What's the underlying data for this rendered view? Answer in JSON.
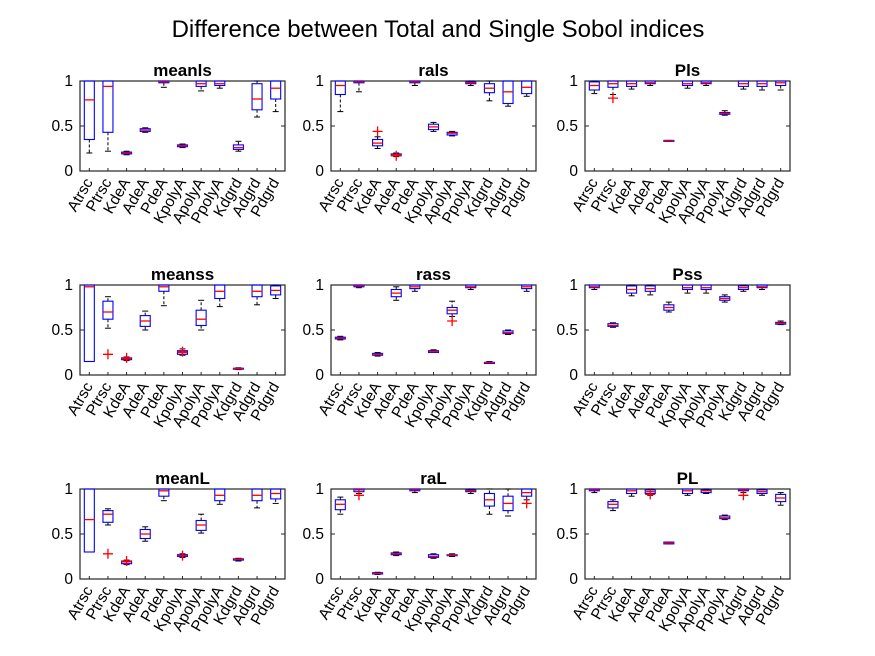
{
  "figure_title": "Difference between Total and Single Sobol indices",
  "colors": {
    "box": "#0000ff",
    "median": "#ff0000",
    "whisker": "#000000",
    "outlier": "#ff0000",
    "axis": "#262626"
  },
  "chart_data": [
    {
      "type": "box",
      "title": "meanls",
      "ylim": [
        0,
        1
      ],
      "yticks": [
        "0",
        "0.5",
        "1"
      ],
      "categories": [
        "Atrsc",
        "Ptrsc",
        "KdeA",
        "AdeA",
        "PdeA",
        "KpolyA",
        "ApolyA",
        "PpolyA",
        "Kdgrd",
        "Adgrd",
        "Pdgrd"
      ],
      "boxes": [
        {
          "lw": 0.2,
          "q1": 0.35,
          "med": 0.79,
          "q3": 1.0,
          "uw": 1.0
        },
        {
          "lw": 0.22,
          "q1": 0.43,
          "med": 0.94,
          "q3": 1.0,
          "uw": 1.0
        },
        {
          "lw": 0.18,
          "q1": 0.19,
          "med": 0.2,
          "q3": 0.21,
          "uw": 0.22
        },
        {
          "lw": 0.43,
          "q1": 0.44,
          "med": 0.455,
          "q3": 0.47,
          "uw": 0.48
        },
        {
          "lw": 0.93,
          "q1": 0.98,
          "med": 0.99,
          "q3": 1.0,
          "uw": 1.0
        },
        {
          "lw": 0.26,
          "q1": 0.27,
          "med": 0.28,
          "q3": 0.29,
          "uw": 0.3
        },
        {
          "lw": 0.89,
          "q1": 0.94,
          "med": 0.97,
          "q3": 1.0,
          "uw": 1.0
        },
        {
          "lw": 0.92,
          "q1": 0.95,
          "med": 0.97,
          "q3": 1.0,
          "uw": 1.0
        },
        {
          "lw": 0.22,
          "q1": 0.24,
          "med": 0.26,
          "q3": 0.29,
          "uw": 0.33
        },
        {
          "lw": 0.6,
          "q1": 0.68,
          "med": 0.8,
          "q3": 0.97,
          "uw": 1.0
        },
        {
          "lw": 0.66,
          "q1": 0.8,
          "med": 0.92,
          "q3": 1.0,
          "uw": 1.0
        }
      ]
    },
    {
      "type": "box",
      "title": "rals",
      "ylim": [
        0,
        1
      ],
      "yticks": [
        "0",
        "0.5",
        "1"
      ],
      "categories": [
        "Atrsc",
        "Ptrsc",
        "KdeA",
        "AdeA",
        "PdeA",
        "KpolyA",
        "ApolyA",
        "PpolyA",
        "Kdgrd",
        "Adgrd",
        "Pdgrd"
      ],
      "boxes": [
        {
          "lw": 0.66,
          "q1": 0.85,
          "med": 0.95,
          "q3": 1.0,
          "uw": 1.0
        },
        {
          "lw": 0.88,
          "q1": 0.98,
          "med": 0.99,
          "q3": 1.0,
          "uw": 1.0
        },
        {
          "lw": 0.25,
          "q1": 0.28,
          "med": 0.31,
          "q3": 0.35,
          "uw": 0.38,
          "outliers": [
            0.44
          ]
        },
        {
          "lw": 0.16,
          "q1": 0.17,
          "med": 0.18,
          "q3": 0.19,
          "uw": 0.2,
          "outliers": [
            0.17
          ]
        },
        {
          "lw": 0.95,
          "q1": 0.98,
          "med": 0.99,
          "q3": 1.0,
          "uw": 1.0
        },
        {
          "lw": 0.44,
          "q1": 0.46,
          "med": 0.49,
          "q3": 0.52,
          "uw": 0.54
        },
        {
          "lw": 0.39,
          "q1": 0.4,
          "med": 0.42,
          "q3": 0.43,
          "uw": 0.44
        },
        {
          "lw": 0.95,
          "q1": 0.97,
          "med": 0.98,
          "q3": 0.99,
          "uw": 1.0
        },
        {
          "lw": 0.78,
          "q1": 0.87,
          "med": 0.92,
          "q3": 0.97,
          "uw": 1.0
        },
        {
          "lw": 0.72,
          "q1": 0.75,
          "med": 0.88,
          "q3": 1.0,
          "uw": 1.0
        },
        {
          "lw": 0.83,
          "q1": 0.86,
          "med": 0.93,
          "q3": 1.0,
          "uw": 1.0
        }
      ]
    },
    {
      "type": "box",
      "title": "Pls",
      "ylim": [
        0,
        1
      ],
      "yticks": [
        "0",
        "0.5",
        "1"
      ],
      "categories": [
        "Atrsc",
        "Ptrsc",
        "KdeA",
        "AdeA",
        "PdeA",
        "KpolyA",
        "ApolyA",
        "PpolyA",
        "Kdgrd",
        "Adgrd",
        "Pdgrd"
      ],
      "boxes": [
        {
          "lw": 0.86,
          "q1": 0.9,
          "med": 0.95,
          "q3": 0.99,
          "uw": 1.0
        },
        {
          "lw": 0.85,
          "q1": 0.93,
          "med": 0.97,
          "q3": 1.0,
          "uw": 1.0,
          "outliers": [
            0.81
          ]
        },
        {
          "lw": 0.91,
          "q1": 0.94,
          "med": 0.97,
          "q3": 1.0,
          "uw": 1.0
        },
        {
          "lw": 0.95,
          "q1": 0.97,
          "med": 0.98,
          "q3": 1.0,
          "uw": 1.0
        },
        {
          "lw": 0.33,
          "q1": 0.33,
          "med": 0.335,
          "q3": 0.34,
          "uw": 0.34
        },
        {
          "lw": 0.92,
          "q1": 0.95,
          "med": 0.97,
          "q3": 1.0,
          "uw": 1.0
        },
        {
          "lw": 0.95,
          "q1": 0.97,
          "med": 0.98,
          "q3": 1.0,
          "uw": 1.0
        },
        {
          "lw": 0.62,
          "q1": 0.63,
          "med": 0.64,
          "q3": 0.65,
          "uw": 0.67
        },
        {
          "lw": 0.91,
          "q1": 0.94,
          "med": 0.97,
          "q3": 1.0,
          "uw": 1.0
        },
        {
          "lw": 0.9,
          "q1": 0.94,
          "med": 0.97,
          "q3": 1.0,
          "uw": 1.0
        },
        {
          "lw": 0.9,
          "q1": 0.95,
          "med": 0.98,
          "q3": 1.0,
          "uw": 1.0
        }
      ]
    },
    {
      "type": "box",
      "title": "meanss",
      "ylim": [
        0,
        1
      ],
      "yticks": [
        "0",
        "0.5",
        "1"
      ],
      "categories": [
        "Atrsc",
        "Ptrsc",
        "KdeA",
        "AdeA",
        "PdeA",
        "KpolyA",
        "ApolyA",
        "PpolyA",
        "Kdgrd",
        "Adgrd",
        "Pdgrd"
      ],
      "boxes": [
        {
          "lw": 0.15,
          "q1": 0.15,
          "med": 0.98,
          "q3": 1.0,
          "uw": 1.0
        },
        {
          "lw": 0.52,
          "q1": 0.62,
          "med": 0.7,
          "q3": 0.82,
          "uw": 0.87,
          "outliers": [
            0.23
          ]
        },
        {
          "lw": 0.16,
          "q1": 0.17,
          "med": 0.18,
          "q3": 0.19,
          "uw": 0.2,
          "outliers": [
            0.19
          ]
        },
        {
          "lw": 0.5,
          "q1": 0.54,
          "med": 0.6,
          "q3": 0.66,
          "uw": 0.71
        },
        {
          "lw": 0.77,
          "q1": 0.93,
          "med": 0.98,
          "q3": 1.0,
          "uw": 1.0
        },
        {
          "lw": 0.22,
          "q1": 0.23,
          "med": 0.25,
          "q3": 0.27,
          "uw": 0.29,
          "outliers": [
            0.26
          ]
        },
        {
          "lw": 0.5,
          "q1": 0.55,
          "med": 0.62,
          "q3": 0.72,
          "uw": 0.83
        },
        {
          "lw": 0.76,
          "q1": 0.85,
          "med": 0.93,
          "q3": 1.0,
          "uw": 1.0
        },
        {
          "lw": 0.06,
          "q1": 0.065,
          "med": 0.07,
          "q3": 0.075,
          "uw": 0.08
        },
        {
          "lw": 0.78,
          "q1": 0.87,
          "med": 0.93,
          "q3": 1.0,
          "uw": 1.0
        },
        {
          "lw": 0.85,
          "q1": 0.89,
          "med": 0.94,
          "q3": 0.99,
          "uw": 1.0
        }
      ]
    },
    {
      "type": "box",
      "title": "rass",
      "ylim": [
        0,
        1
      ],
      "yticks": [
        "0",
        "0.5",
        "1"
      ],
      "categories": [
        "Atrsc",
        "Ptrsc",
        "KdeA",
        "AdeA",
        "PdeA",
        "KpolyA",
        "ApolyA",
        "PpolyA",
        "Kdgrd",
        "Adgrd",
        "Pdgrd"
      ],
      "boxes": [
        {
          "lw": 0.39,
          "q1": 0.4,
          "med": 0.41,
          "q3": 0.42,
          "uw": 0.43
        },
        {
          "lw": 0.97,
          "q1": 0.98,
          "med": 0.99,
          "q3": 1.0,
          "uw": 1.0
        },
        {
          "lw": 0.21,
          "q1": 0.22,
          "med": 0.23,
          "q3": 0.24,
          "uw": 0.25
        },
        {
          "lw": 0.83,
          "q1": 0.87,
          "med": 0.91,
          "q3": 0.95,
          "uw": 0.98
        },
        {
          "lw": 0.93,
          "q1": 0.96,
          "med": 0.98,
          "q3": 1.0,
          "uw": 1.0
        },
        {
          "lw": 0.25,
          "q1": 0.25,
          "med": 0.26,
          "q3": 0.27,
          "uw": 0.28
        },
        {
          "lw": 0.65,
          "q1": 0.68,
          "med": 0.72,
          "q3": 0.75,
          "uw": 0.82,
          "outliers": [
            0.6
          ]
        },
        {
          "lw": 0.95,
          "q1": 0.97,
          "med": 0.98,
          "q3": 1.0,
          "uw": 1.0
        },
        {
          "lw": 0.13,
          "q1": 0.13,
          "med": 0.14,
          "q3": 0.14,
          "uw": 0.15
        },
        {
          "lw": 0.45,
          "q1": 0.46,
          "med": 0.47,
          "q3": 0.49,
          "uw": 0.5
        },
        {
          "lw": 0.93,
          "q1": 0.96,
          "med": 0.98,
          "q3": 1.0,
          "uw": 1.0
        }
      ]
    },
    {
      "type": "box",
      "title": "Pss",
      "ylim": [
        0,
        1
      ],
      "yticks": [
        "0",
        "0.5",
        "1"
      ],
      "categories": [
        "Atrsc",
        "Ptrsc",
        "KdeA",
        "AdeA",
        "PdeA",
        "KpolyA",
        "ApolyA",
        "PpolyA",
        "Kdgrd",
        "Adgrd",
        "Pdgrd"
      ],
      "boxes": [
        {
          "lw": 0.95,
          "q1": 0.97,
          "med": 0.98,
          "q3": 1.0,
          "uw": 1.0
        },
        {
          "lw": 0.53,
          "q1": 0.54,
          "med": 0.55,
          "q3": 0.57,
          "uw": 0.58
        },
        {
          "lw": 0.88,
          "q1": 0.91,
          "med": 0.95,
          "q3": 0.99,
          "uw": 1.0
        },
        {
          "lw": 0.89,
          "q1": 0.93,
          "med": 0.96,
          "q3": 0.99,
          "uw": 1.0
        },
        {
          "lw": 0.7,
          "q1": 0.72,
          "med": 0.75,
          "q3": 0.78,
          "uw": 0.81
        },
        {
          "lw": 0.91,
          "q1": 0.95,
          "med": 0.97,
          "q3": 1.0,
          "uw": 1.0
        },
        {
          "lw": 0.91,
          "q1": 0.95,
          "med": 0.97,
          "q3": 1.0,
          "uw": 1.0
        },
        {
          "lw": 0.81,
          "q1": 0.83,
          "med": 0.85,
          "q3": 0.87,
          "uw": 0.89
        },
        {
          "lw": 0.93,
          "q1": 0.95,
          "med": 0.97,
          "q3": 0.99,
          "uw": 1.0
        },
        {
          "lw": 0.95,
          "q1": 0.97,
          "med": 0.98,
          "q3": 1.0,
          "uw": 1.0
        },
        {
          "lw": 0.56,
          "q1": 0.565,
          "med": 0.575,
          "q3": 0.585,
          "uw": 0.6
        }
      ]
    },
    {
      "type": "box",
      "title": "meanL",
      "ylim": [
        0,
        1
      ],
      "yticks": [
        "0",
        "0.5",
        "1"
      ],
      "categories": [
        "Atrsc",
        "Ptrsc",
        "KdeA",
        "AdeA",
        "PdeA",
        "KpolyA",
        "ApolyA",
        "PpolyA",
        "Kdgrd",
        "Adgrd",
        "Pdgrd"
      ],
      "boxes": [
        {
          "lw": 0.3,
          "q1": 0.3,
          "med": 0.66,
          "q3": 1.0,
          "uw": 1.0
        },
        {
          "lw": 0.6,
          "q1": 0.63,
          "med": 0.72,
          "q3": 0.76,
          "uw": 0.78,
          "outliers": [
            0.28
          ]
        },
        {
          "lw": 0.16,
          "q1": 0.17,
          "med": 0.19,
          "q3": 0.2,
          "uw": 0.21,
          "outliers": [
            0.2
          ]
        },
        {
          "lw": 0.42,
          "q1": 0.45,
          "med": 0.5,
          "q3": 0.55,
          "uw": 0.58
        },
        {
          "lw": 0.87,
          "q1": 0.92,
          "med": 0.98,
          "q3": 1.0,
          "uw": 1.0
        },
        {
          "lw": 0.24,
          "q1": 0.25,
          "med": 0.26,
          "q3": 0.27,
          "uw": 0.28,
          "outliers": [
            0.26
          ]
        },
        {
          "lw": 0.51,
          "q1": 0.54,
          "med": 0.6,
          "q3": 0.65,
          "uw": 0.72
        },
        {
          "lw": 0.83,
          "q1": 0.87,
          "med": 0.93,
          "q3": 1.0,
          "uw": 1.0
        },
        {
          "lw": 0.2,
          "q1": 0.21,
          "med": 0.22,
          "q3": 0.225,
          "uw": 0.23
        },
        {
          "lw": 0.79,
          "q1": 0.87,
          "med": 0.93,
          "q3": 1.0,
          "uw": 1.0
        },
        {
          "lw": 0.84,
          "q1": 0.89,
          "med": 0.95,
          "q3": 1.0,
          "uw": 1.0
        }
      ]
    },
    {
      "type": "box",
      "title": "raL",
      "ylim": [
        0,
        1
      ],
      "yticks": [
        "0",
        "0.5",
        "1"
      ],
      "categories": [
        "Atrsc",
        "Ptrsc",
        "KdeA",
        "AdeA",
        "PdeA",
        "KpolyA",
        "ApolyA",
        "PpolyA",
        "Kdgrd",
        "Adgrd",
        "Pdgrd"
      ],
      "boxes": [
        {
          "lw": 0.72,
          "q1": 0.77,
          "med": 0.83,
          "q3": 0.88,
          "uw": 0.91
        },
        {
          "lw": 0.95,
          "q1": 0.97,
          "med": 0.99,
          "q3": 1.0,
          "uw": 1.0,
          "outliers": [
            0.93
          ]
        },
        {
          "lw": 0.05,
          "q1": 0.055,
          "med": 0.06,
          "q3": 0.07,
          "uw": 0.075
        },
        {
          "lw": 0.26,
          "q1": 0.27,
          "med": 0.28,
          "q3": 0.29,
          "uw": 0.3
        },
        {
          "lw": 0.96,
          "q1": 0.98,
          "med": 0.99,
          "q3": 1.0,
          "uw": 1.0
        },
        {
          "lw": 0.23,
          "q1": 0.24,
          "med": 0.25,
          "q3": 0.27,
          "uw": 0.28
        },
        {
          "lw": 0.25,
          "q1": 0.26,
          "med": 0.265,
          "q3": 0.27,
          "uw": 0.28
        },
        {
          "lw": 0.95,
          "q1": 0.97,
          "med": 0.98,
          "q3": 0.99,
          "uw": 1.0
        },
        {
          "lw": 0.72,
          "q1": 0.81,
          "med": 0.88,
          "q3": 0.95,
          "uw": 1.0
        },
        {
          "lw": 0.7,
          "q1": 0.76,
          "med": 0.84,
          "q3": 0.92,
          "uw": 1.0
        },
        {
          "lw": 0.88,
          "q1": 0.92,
          "med": 0.96,
          "q3": 1.0,
          "uw": 1.0,
          "outliers": [
            0.84
          ]
        }
      ]
    },
    {
      "type": "box",
      "title": "PL",
      "ylim": [
        0,
        1
      ],
      "yticks": [
        "0",
        "0.5",
        "1"
      ],
      "categories": [
        "Atrsc",
        "Ptrsc",
        "KdeA",
        "AdeA",
        "PdeA",
        "KpolyA",
        "ApolyA",
        "PpolyA",
        "Kdgrd",
        "Adgrd",
        "Pdgrd"
      ],
      "boxes": [
        {
          "lw": 0.96,
          "q1": 0.98,
          "med": 0.99,
          "q3": 1.0,
          "uw": 1.0
        },
        {
          "lw": 0.76,
          "q1": 0.79,
          "med": 0.83,
          "q3": 0.86,
          "uw": 0.88
        },
        {
          "lw": 0.92,
          "q1": 0.95,
          "med": 0.98,
          "q3": 1.0,
          "uw": 1.0
        },
        {
          "lw": 0.93,
          "q1": 0.95,
          "med": 0.97,
          "q3": 0.99,
          "uw": 1.0,
          "outliers": [
            0.94
          ]
        },
        {
          "lw": 0.39,
          "q1": 0.39,
          "med": 0.4,
          "q3": 0.41,
          "uw": 0.41
        },
        {
          "lw": 0.93,
          "q1": 0.95,
          "med": 0.98,
          "q3": 1.0,
          "uw": 1.0
        },
        {
          "lw": 0.95,
          "q1": 0.96,
          "med": 0.98,
          "q3": 0.99,
          "uw": 1.0
        },
        {
          "lw": 0.66,
          "q1": 0.67,
          "med": 0.68,
          "q3": 0.7,
          "uw": 0.71
        },
        {
          "lw": 0.96,
          "q1": 0.98,
          "med": 0.99,
          "q3": 1.0,
          "uw": 1.0,
          "outliers": [
            0.93
          ]
        },
        {
          "lw": 0.93,
          "q1": 0.95,
          "med": 0.97,
          "q3": 0.99,
          "uw": 1.0
        },
        {
          "lw": 0.82,
          "q1": 0.86,
          "med": 0.9,
          "q3": 0.94,
          "uw": 0.96
        }
      ]
    }
  ]
}
